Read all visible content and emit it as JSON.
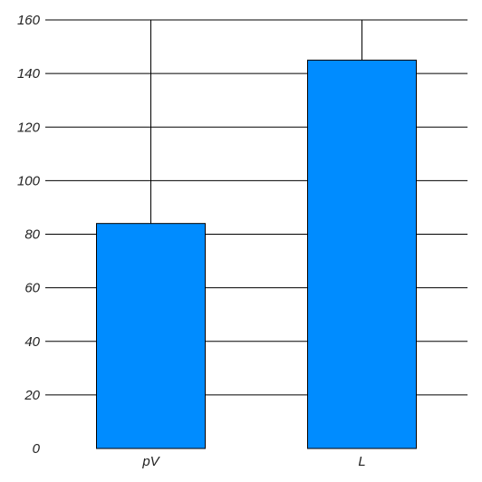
{
  "chart_data": {
    "type": "bar",
    "title": "",
    "xlabel": "",
    "ylabel": "",
    "categories": [
      "pV",
      "L"
    ],
    "values": [
      84,
      145
    ],
    "ylim": [
      0,
      160
    ],
    "yticks": [
      0,
      20,
      40,
      60,
      80,
      100,
      120,
      140,
      160
    ],
    "grid": true,
    "grid_axis": "y",
    "bar_color": "#008cff",
    "bar_edge_color": "#000000",
    "grid_color": "#000000",
    "legend": "none"
  }
}
